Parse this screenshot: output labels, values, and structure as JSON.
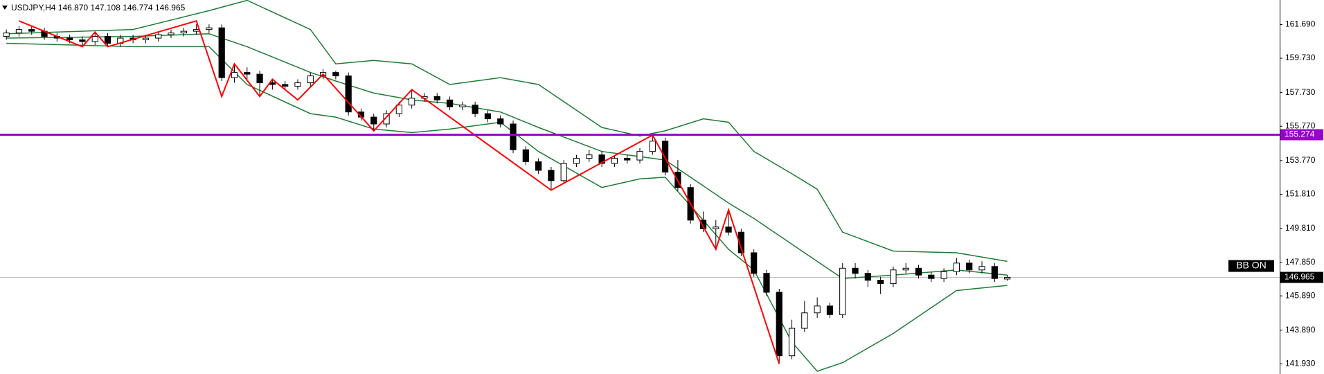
{
  "chart_data": {
    "type": "candlestick",
    "header": "USDJPY,H4  146.870 147.108 146.774 146.965",
    "badge": "BB ON",
    "up_color": "#ffffff",
    "down_color": "#000000",
    "xlim": [
      -0.5,
      100.5
    ],
    "ylim": [
      141.34,
      163.12
    ],
    "yticks": [
      {
        "value": 161.69,
        "label": "161.690"
      },
      {
        "value": 159.73,
        "label": "159.730"
      },
      {
        "value": 157.73,
        "label": "157.730"
      },
      {
        "value": 155.77,
        "label": "155.770"
      },
      {
        "value": 153.77,
        "label": "153.770"
      },
      {
        "value": 151.81,
        "label": "151.810"
      },
      {
        "value": 149.81,
        "label": "149.810"
      },
      {
        "value": 147.85,
        "label": "147.850"
      },
      {
        "value": 145.89,
        "label": "145.890"
      },
      {
        "value": 143.89,
        "label": "143.890"
      },
      {
        "value": 141.93,
        "label": "141.930"
      }
    ],
    "ohlc": [
      [
        161.0,
        161.4,
        160.8,
        161.2
      ],
      [
        161.2,
        161.6,
        161.0,
        161.4
      ],
      [
        161.4,
        161.6,
        161.1,
        161.3
      ],
      [
        161.3,
        161.5,
        160.8,
        161.0
      ],
      [
        161.0,
        161.2,
        160.7,
        160.9
      ],
      [
        160.9,
        161.1,
        160.6,
        160.8
      ],
      [
        160.8,
        161.0,
        160.5,
        160.7
      ],
      [
        160.7,
        161.2,
        160.5,
        161.0
      ],
      [
        161.0,
        161.2,
        160.4,
        160.6
      ],
      [
        160.6,
        161.1,
        160.4,
        160.9
      ],
      [
        160.9,
        161.1,
        160.6,
        160.8
      ],
      [
        160.8,
        161.1,
        160.6,
        160.9
      ],
      [
        160.9,
        161.3,
        160.7,
        161.1
      ],
      [
        161.1,
        161.4,
        160.9,
        161.2
      ],
      [
        161.2,
        161.5,
        161.0,
        161.3
      ],
      [
        161.3,
        161.7,
        161.1,
        161.4
      ],
      [
        161.4,
        161.7,
        161.2,
        161.5
      ],
      [
        161.5,
        161.7,
        158.4,
        158.6
      ],
      [
        158.6,
        159.4,
        158.3,
        158.9
      ],
      [
        158.9,
        159.2,
        158.5,
        158.8
      ],
      [
        158.8,
        159.0,
        157.5,
        158.3
      ],
      [
        158.3,
        158.5,
        157.9,
        158.2
      ],
      [
        158.2,
        158.4,
        157.9,
        158.1
      ],
      [
        158.1,
        158.5,
        157.9,
        158.3
      ],
      [
        158.3,
        158.9,
        158.1,
        158.7
      ],
      [
        158.7,
        159.1,
        158.5,
        158.9
      ],
      [
        158.9,
        159.0,
        158.5,
        158.7
      ],
      [
        158.7,
        158.9,
        156.4,
        156.6
      ],
      [
        156.6,
        156.8,
        156.1,
        156.3
      ],
      [
        156.3,
        156.5,
        155.5,
        155.9
      ],
      [
        155.9,
        156.7,
        155.7,
        156.5
      ],
      [
        156.5,
        157.2,
        156.3,
        157.0
      ],
      [
        157.0,
        157.9,
        156.8,
        157.4
      ],
      [
        157.4,
        157.7,
        157.2,
        157.5
      ],
      [
        157.5,
        157.7,
        157.1,
        157.3
      ],
      [
        157.3,
        157.5,
        156.7,
        156.9
      ],
      [
        156.9,
        157.2,
        156.7,
        157.0
      ],
      [
        157.0,
        157.2,
        156.3,
        156.5
      ],
      [
        156.5,
        156.7,
        156.0,
        156.2
      ],
      [
        156.2,
        156.4,
        155.7,
        155.9
      ],
      [
        155.9,
        156.1,
        154.2,
        154.4
      ],
      [
        154.4,
        154.6,
        153.5,
        153.7
      ],
      [
        153.7,
        153.9,
        153.0,
        153.2
      ],
      [
        153.2,
        153.4,
        152.05,
        152.6
      ],
      [
        152.6,
        153.8,
        152.4,
        153.6
      ],
      [
        153.6,
        154.1,
        153.4,
        153.9
      ],
      [
        153.9,
        154.4,
        153.7,
        154.1
      ],
      [
        154.1,
        154.3,
        153.4,
        153.6
      ],
      [
        153.6,
        154.1,
        153.4,
        153.9
      ],
      [
        153.9,
        154.1,
        153.6,
        153.8
      ],
      [
        153.8,
        154.5,
        153.6,
        154.3
      ],
      [
        154.3,
        155.25,
        154.1,
        154.9
      ],
      [
        154.9,
        155.1,
        152.9,
        153.1
      ],
      [
        153.1,
        153.8,
        152.0,
        152.2
      ],
      [
        152.2,
        152.4,
        150.1,
        150.3
      ],
      [
        150.3,
        150.8,
        149.6,
        149.8
      ],
      [
        149.8,
        150.3,
        148.6,
        149.9
      ],
      [
        149.9,
        150.9,
        149.4,
        149.6
      ],
      [
        149.6,
        149.8,
        148.2,
        148.4
      ],
      [
        148.4,
        148.6,
        147.0,
        147.2
      ],
      [
        147.2,
        147.4,
        145.9,
        146.1
      ],
      [
        146.1,
        146.3,
        141.93,
        142.4
      ],
      [
        142.4,
        144.5,
        142.2,
        144.0
      ],
      [
        144.0,
        145.6,
        143.8,
        144.9
      ],
      [
        144.9,
        145.8,
        144.6,
        145.3
      ],
      [
        145.3,
        145.5,
        144.6,
        144.8
      ],
      [
        144.8,
        147.8,
        144.6,
        147.5
      ],
      [
        147.5,
        147.8,
        146.9,
        147.2
      ],
      [
        147.2,
        147.4,
        146.4,
        146.8
      ],
      [
        146.8,
        147.0,
        146.0,
        146.6
      ],
      [
        146.6,
        147.6,
        146.4,
        147.4
      ],
      [
        147.4,
        147.8,
        147.2,
        147.5
      ],
      [
        147.5,
        147.7,
        146.9,
        147.1
      ],
      [
        147.1,
        147.3,
        146.7,
        146.9
      ],
      [
        146.9,
        147.5,
        146.7,
        147.3
      ],
      [
        147.3,
        148.1,
        147.1,
        147.8
      ],
      [
        147.8,
        148.0,
        147.2,
        147.4
      ],
      [
        147.4,
        147.9,
        147.2,
        147.6
      ],
      [
        147.6,
        147.8,
        146.7,
        146.9
      ],
      [
        146.87,
        147.108,
        146.774,
        146.965
      ]
    ],
    "bands": {
      "color": "#1e7b34",
      "x": [
        0,
        10,
        16,
        19,
        24,
        26,
        29,
        32,
        35,
        39,
        42,
        47,
        50,
        52,
        55,
        57,
        59,
        62,
        64,
        66,
        70,
        75,
        79
      ],
      "upper": [
        161.15,
        161.4,
        162.5,
        163.1,
        161.4,
        159.4,
        159.6,
        159.4,
        158.2,
        158.6,
        158.2,
        155.7,
        155.2,
        155.5,
        156.2,
        156.0,
        154.3,
        153.0,
        152.1,
        149.6,
        148.5,
        148.4,
        147.9
      ],
      "middle": [
        160.9,
        161.0,
        161.15,
        160.4,
        158.9,
        158.4,
        157.7,
        157.3,
        157.1,
        156.6,
        155.7,
        154.3,
        154.0,
        153.8,
        152.3,
        151.3,
        150.4,
        148.9,
        147.9,
        146.9,
        147.1,
        147.4,
        147.1
      ],
      "lower": [
        160.6,
        160.4,
        160.4,
        158.2,
        156.5,
        156.3,
        155.6,
        155.4,
        155.6,
        156.0,
        154.3,
        152.2,
        152.7,
        152.8,
        150.3,
        148.6,
        147.4,
        143.2,
        141.5,
        142.0,
        143.7,
        146.2,
        146.5
      ]
    },
    "zigzag": {
      "color": "#ff0000",
      "x": [
        1,
        6,
        7,
        8,
        15,
        17,
        18,
        20,
        21,
        23,
        25,
        29,
        32,
        43,
        51,
        56,
        57,
        61
      ],
      "values": [
        161.9,
        160.4,
        161.25,
        160.4,
        161.9,
        157.5,
        159.4,
        157.5,
        158.5,
        157.3,
        158.8,
        155.5,
        157.9,
        152.05,
        155.25,
        148.6,
        150.9,
        141.93
      ]
    },
    "hline": {
      "value": 155.274,
      "label": "155.274",
      "color": "#9900cc"
    },
    "last_price": {
      "value": 146.965,
      "label": "146.965"
    }
  }
}
